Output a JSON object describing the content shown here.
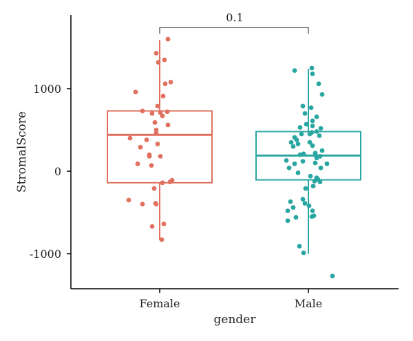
{
  "chart_data": {
    "type": "box",
    "xlabel": "gender",
    "ylabel": "StromalScore",
    "ylim": [
      -1450,
      1900
    ],
    "yticks": [
      1000,
      0,
      -1000
    ],
    "ytick_labels": [
      "1000",
      "0",
      "-1000"
    ],
    "categories": [
      "Female",
      "Male"
    ],
    "colors": {
      "Female": "#E0705F",
      "Male": "#2AA6A2"
    },
    "comparison": {
      "groups": [
        "Female",
        "Male"
      ],
      "label": "0.1"
    },
    "boxes": [
      {
        "group": "Female",
        "q1": -140,
        "median": 440,
        "q3": 730,
        "whisker_low": -830,
        "whisker_high": 1590
      },
      {
        "group": "Male",
        "q1": -105,
        "median": 190,
        "q3": 480,
        "whisker_low": -1000,
        "whisker_high": 1240
      }
    ],
    "points": {
      "Female": [
        [
          0.12,
          1600
        ],
        [
          -0.05,
          1430
        ],
        [
          -0.02,
          1320
        ],
        [
          0.07,
          1350
        ],
        [
          0.16,
          1080
        ],
        [
          0.08,
          1060
        ],
        [
          -0.35,
          960
        ],
        [
          0.05,
          910
        ],
        [
          0.11,
          720
        ],
        [
          -0.03,
          790
        ],
        [
          0.01,
          710
        ],
        [
          -0.25,
          730
        ],
        [
          -0.11,
          700
        ],
        [
          0.04,
          670
        ],
        [
          -0.07,
          590
        ],
        [
          0.12,
          560
        ],
        [
          -0.05,
          500
        ],
        [
          -0.05,
          460
        ],
        [
          -0.43,
          400
        ],
        [
          -0.19,
          380
        ],
        [
          -0.03,
          330
        ],
        [
          -0.28,
          290
        ],
        [
          -0.15,
          200
        ],
        [
          -0.15,
          180
        ],
        [
          0.01,
          180
        ],
        [
          -0.32,
          90
        ],
        [
          -0.12,
          70
        ],
        [
          0.04,
          -140
        ],
        [
          0.18,
          -110
        ],
        [
          0.15,
          -130
        ],
        [
          -0.08,
          -210
        ],
        [
          -0.45,
          -350
        ],
        [
          -0.25,
          -400
        ],
        [
          -0.06,
          -390
        ],
        [
          -0.05,
          -400
        ],
        [
          0.06,
          -640
        ],
        [
          -0.11,
          -670
        ],
        [
          0.03,
          -830
        ]
      ],
      "Male": [
        [
          0.05,
          1250
        ],
        [
          -0.2,
          1220
        ],
        [
          0.06,
          1180
        ],
        [
          0.15,
          1060
        ],
        [
          0.2,
          930
        ],
        [
          -0.08,
          790
        ],
        [
          0.04,
          770
        ],
        [
          -0.05,
          700
        ],
        [
          0.12,
          660
        ],
        [
          0.06,
          610
        ],
        [
          -0.03,
          570
        ],
        [
          0.06,
          550
        ],
        [
          -0.12,
          530
        ],
        [
          0.18,
          520
        ],
        [
          0.12,
          480
        ],
        [
          0.05,
          470
        ],
        [
          -0.1,
          450
        ],
        [
          0.02,
          450
        ],
        [
          0.16,
          430
        ],
        [
          -0.2,
          410
        ],
        [
          -0.17,
          380
        ],
        [
          -0.25,
          350
        ],
        [
          0.02,
          350
        ],
        [
          -0.15,
          330
        ],
        [
          0.06,
          310
        ],
        [
          -0.22,
          300
        ],
        [
          0.2,
          250
        ],
        [
          0.1,
          220
        ],
        [
          -0.07,
          210
        ],
        [
          -0.12,
          200
        ],
        [
          0.1,
          200
        ],
        [
          0.17,
          180
        ],
        [
          0.12,
          160
        ],
        [
          -0.32,
          130
        ],
        [
          -0.08,
          120
        ],
        [
          0.1,
          100
        ],
        [
          -0.2,
          90
        ],
        [
          0.27,
          90
        ],
        [
          -0.28,
          40
        ],
        [
          0.18,
          40
        ],
        [
          -0.15,
          -20
        ],
        [
          0.03,
          -60
        ],
        [
          0.12,
          -80
        ],
        [
          0.14,
          -100
        ],
        [
          0.09,
          -120
        ],
        [
          0.17,
          -130
        ],
        [
          0.07,
          -180
        ],
        [
          -0.04,
          -210
        ],
        [
          -0.26,
          -370
        ],
        [
          -0.08,
          -340
        ],
        [
          -0.05,
          -390
        ],
        [
          0.01,
          -420
        ],
        [
          -0.22,
          -440
        ],
        [
          -0.3,
          -480
        ],
        [
          0.06,
          -480
        ],
        [
          0.08,
          -540
        ],
        [
          0.05,
          -550
        ],
        [
          -0.18,
          -560
        ],
        [
          -0.3,
          -600
        ],
        [
          -0.13,
          -910
        ],
        [
          -0.07,
          -990
        ],
        [
          0.35,
          -1270
        ]
      ]
    }
  }
}
